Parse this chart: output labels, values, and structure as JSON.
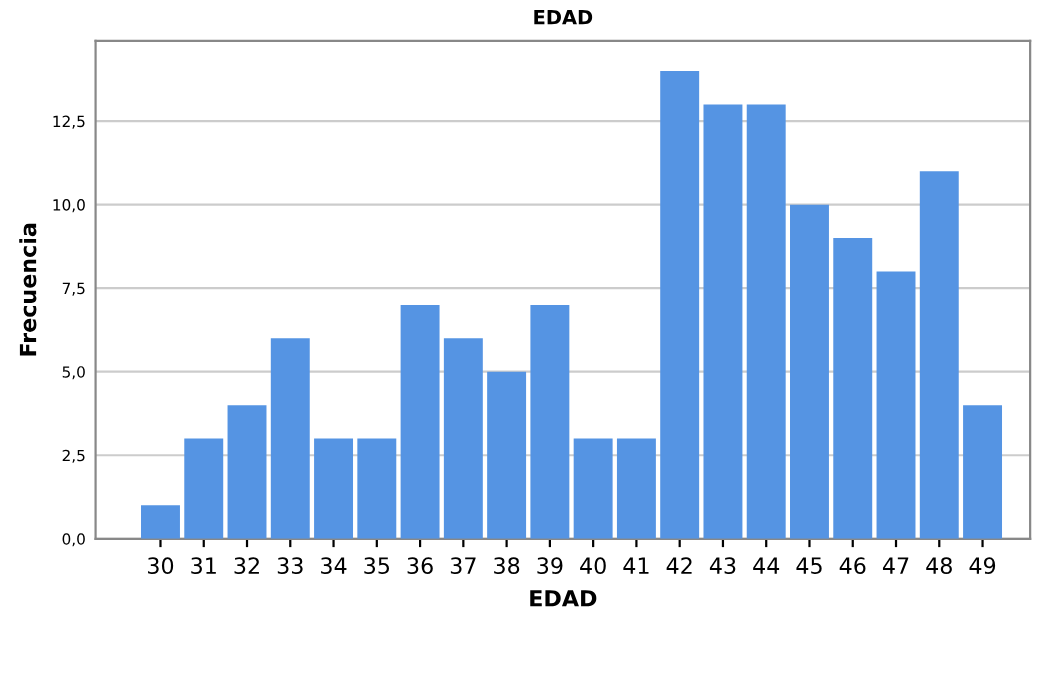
{
  "chart_data": {
    "type": "bar",
    "title": "EDAD",
    "xlabel": "EDAD",
    "ylabel": "Frecuencia",
    "categories": [
      "30",
      "31",
      "32",
      "33",
      "34",
      "35",
      "36",
      "37",
      "38",
      "39",
      "40",
      "41",
      "42",
      "43",
      "44",
      "45",
      "46",
      "47",
      "48",
      "49"
    ],
    "values": [
      1,
      3,
      4,
      6,
      3,
      3,
      7,
      6,
      5,
      7,
      3,
      3,
      14,
      13,
      13,
      10,
      9,
      8,
      11,
      4
    ],
    "color": "#5594e3",
    "ylim": [
      0,
      14.9
    ],
    "yticks": [
      {
        "value": 0,
        "label": "0,0"
      },
      {
        "value": 2.5,
        "label": "2,5"
      },
      {
        "value": 5,
        "label": "5,0"
      },
      {
        "value": 7.5,
        "label": "7,5"
      },
      {
        "value": 10,
        "label": "10,0"
      },
      {
        "value": 12.5,
        "label": "12,5"
      }
    ],
    "grid": "y"
  }
}
